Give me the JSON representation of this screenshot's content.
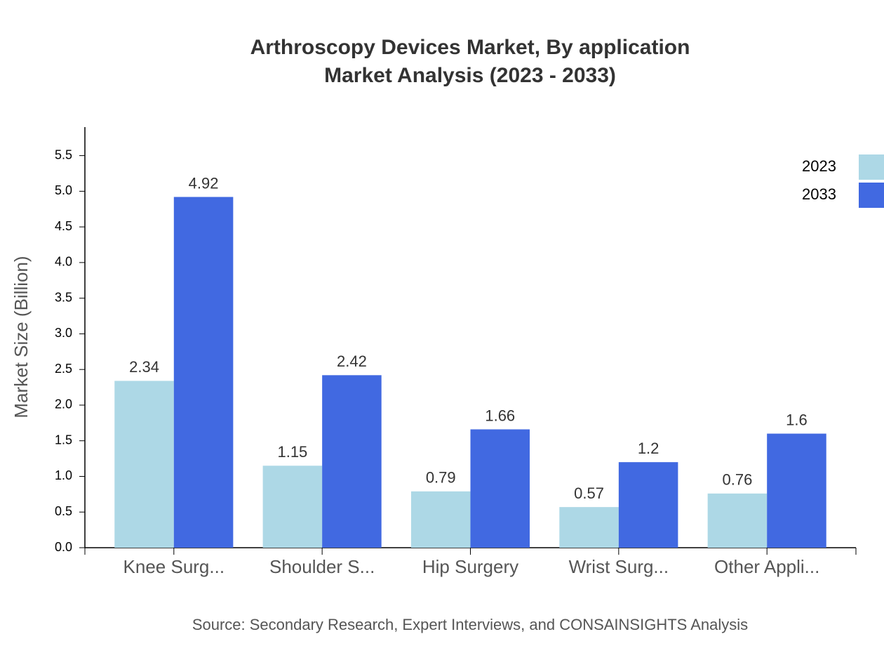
{
  "chart_data": {
    "type": "bar",
    "title": [
      "Arthroscopy Devices Market, By application",
      "Market Analysis (2023 - 2033)"
    ],
    "source": "Source: Secondary Research, Expert Interviews, and CONSAINSIGHTS Analysis",
    "y_label": "Market Size (Billion)",
    "categories": [
      "Knee Surg...",
      "Shoulder S...",
      "Hip Surgery",
      "Wrist Surg...",
      "Other Appli..."
    ],
    "series": [
      {
        "name": "2023",
        "color": "#add8e6",
        "values": [
          2.34,
          1.15,
          0.79,
          0.57,
          0.76
        ]
      },
      {
        "name": "2033",
        "color": "#4169e1",
        "values": [
          4.92,
          2.42,
          1.66,
          1.2,
          1.6
        ]
      }
    ],
    "ylim": [
      0,
      5.9
    ],
    "yticks": [
      {
        "value": 0,
        "label": "0.0"
      },
      0.5,
      {
        "value": 1,
        "label": "1.0"
      },
      1.5,
      {
        "value": 2,
        "label": "2.0"
      },
      2.5,
      {
        "value": 3,
        "label": "3.0"
      },
      3.5,
      {
        "value": 4,
        "label": "4.0"
      },
      4.5,
      {
        "value": 5,
        "label": "5.0"
      },
      5.5
    ],
    "legend": "top-right"
  }
}
